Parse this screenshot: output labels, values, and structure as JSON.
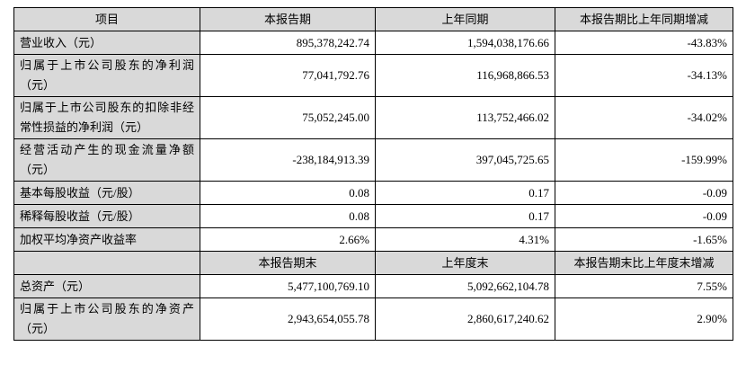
{
  "table": {
    "header": [
      "项目",
      "本报告期",
      "上年同期",
      "本报告期比上年同期增减"
    ],
    "rows": [
      [
        "营业收入（元）",
        "895,378,242.74",
        "1,594,038,176.66",
        "-43.83%"
      ],
      [
        "归属于上市公司股东的净利润（元）",
        "77,041,792.76",
        "116,968,866.53",
        "-34.13%"
      ],
      [
        "归属于上市公司股东的扣除非经常性损益的净利润（元）",
        "75,052,245.00",
        "113,752,466.02",
        "-34.02%"
      ],
      [
        "经营活动产生的现金流量净额（元）",
        "-238,184,913.39",
        "397,045,725.65",
        "-159.99%"
      ],
      [
        "基本每股收益（元/股）",
        "0.08",
        "0.17",
        "-0.09"
      ],
      [
        "稀释每股收益（元/股）",
        "0.08",
        "0.17",
        "-0.09"
      ],
      [
        "加权平均净资产收益率",
        "2.66%",
        "4.31%",
        "-1.65%"
      ]
    ],
    "header2": [
      "本报告期末",
      "上年度末",
      "本报告期末比上年度末增减"
    ],
    "rows2": [
      [
        "总资产（元）",
        "5,477,100,769.10",
        "5,092,662,104.78",
        "7.55%"
      ],
      [
        "归属于上市公司股东的净资产（元）",
        "2,943,654,055.78",
        "2,860,617,240.62",
        "2.90%"
      ]
    ]
  }
}
